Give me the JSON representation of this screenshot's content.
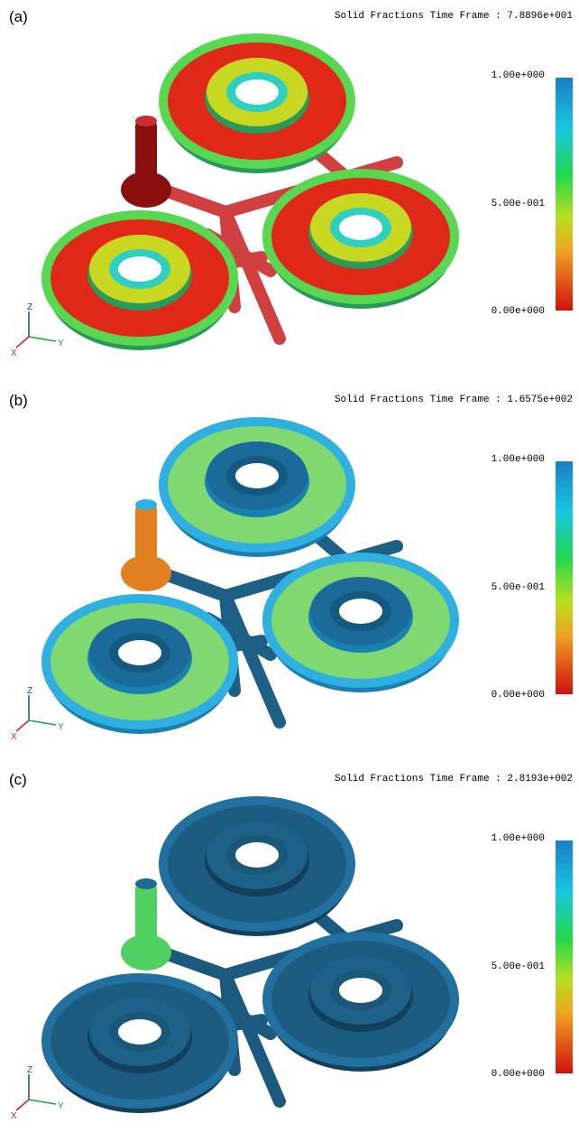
{
  "panels": [
    {
      "label": "(a)",
      "title": "Solid Fractions Time Frame : 7.8896e+001",
      "colorbar_labels": [
        "1.00e+000",
        "5.00e-001",
        "0.00e+000"
      ],
      "axes": [
        "Z",
        "Y",
        "X"
      ]
    },
    {
      "label": "(b)",
      "title": "Solid Fractions Time Frame : 1.6575e+002",
      "colorbar_labels": [
        "1.00e+000",
        "5.00e-001",
        "0.00e+000"
      ],
      "axes": [
        "Z",
        "Y",
        "X"
      ]
    },
    {
      "label": "(c)",
      "title": "Solid Fractions Time Frame : 2.8193e+002",
      "colorbar_labels": [
        "1.00e+000",
        "5.00e-001",
        "0.00e+000"
      ],
      "axes": [
        "Z",
        "Y",
        "X"
      ]
    }
  ]
}
